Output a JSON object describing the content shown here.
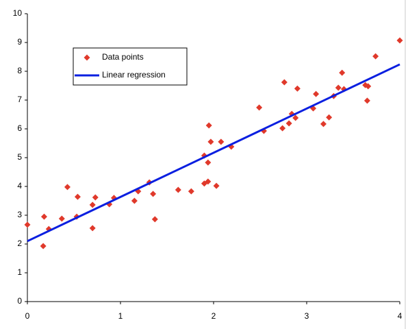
{
  "chart_data": {
    "type": "scatter",
    "series": [
      {
        "name": "Data points",
        "type": "scatter",
        "color": "#e0392b",
        "x": [
          0,
          0.17,
          0.18,
          0.23,
          0.37,
          0.43,
          0.53,
          0.54,
          0.7,
          0.7,
          0.73,
          0.88,
          0.93,
          1.15,
          1.19,
          1.31,
          1.35,
          1.37,
          1.62,
          1.76,
          1.9,
          1.9,
          1.94,
          1.94,
          1.95,
          1.97,
          2.03,
          2.08,
          2.19,
          2.49,
          2.54,
          2.74,
          2.76,
          2.81,
          2.84,
          2.88,
          2.9,
          3.07,
          3.1,
          3.18,
          3.24,
          3.29,
          3.34,
          3.38,
          3.4,
          3.63,
          3.65,
          3.66,
          3.74,
          4.0
        ],
        "values": [
          2.67,
          1.93,
          2.95,
          2.52,
          2.88,
          3.98,
          2.95,
          3.64,
          3.36,
          2.55,
          3.62,
          3.38,
          3.6,
          3.5,
          3.83,
          4.14,
          3.74,
          2.86,
          3.88,
          3.83,
          4.1,
          5.07,
          4.83,
          4.17,
          6.12,
          5.55,
          4.02,
          5.55,
          5.38,
          6.74,
          5.93,
          6.02,
          7.62,
          6.19,
          6.52,
          6.38,
          7.4,
          6.71,
          7.21,
          6.17,
          6.4,
          7.14,
          7.43,
          7.95,
          7.38,
          7.52,
          6.98,
          7.48,
          8.52,
          9.07
        ]
      },
      {
        "name": "Linear regression",
        "type": "line",
        "color": "#0a1fe0",
        "x": [
          0,
          4
        ],
        "values": [
          2.1,
          8.24
        ]
      }
    ],
    "xlim": [
      0,
      4
    ],
    "xticks": [
      0,
      1,
      2,
      3,
      4
    ],
    "ylim": [
      0,
      10
    ],
    "yticks": [
      0,
      1,
      2,
      3,
      4,
      5,
      6,
      7,
      8,
      9,
      10
    ],
    "legend_position": "upper-left"
  }
}
